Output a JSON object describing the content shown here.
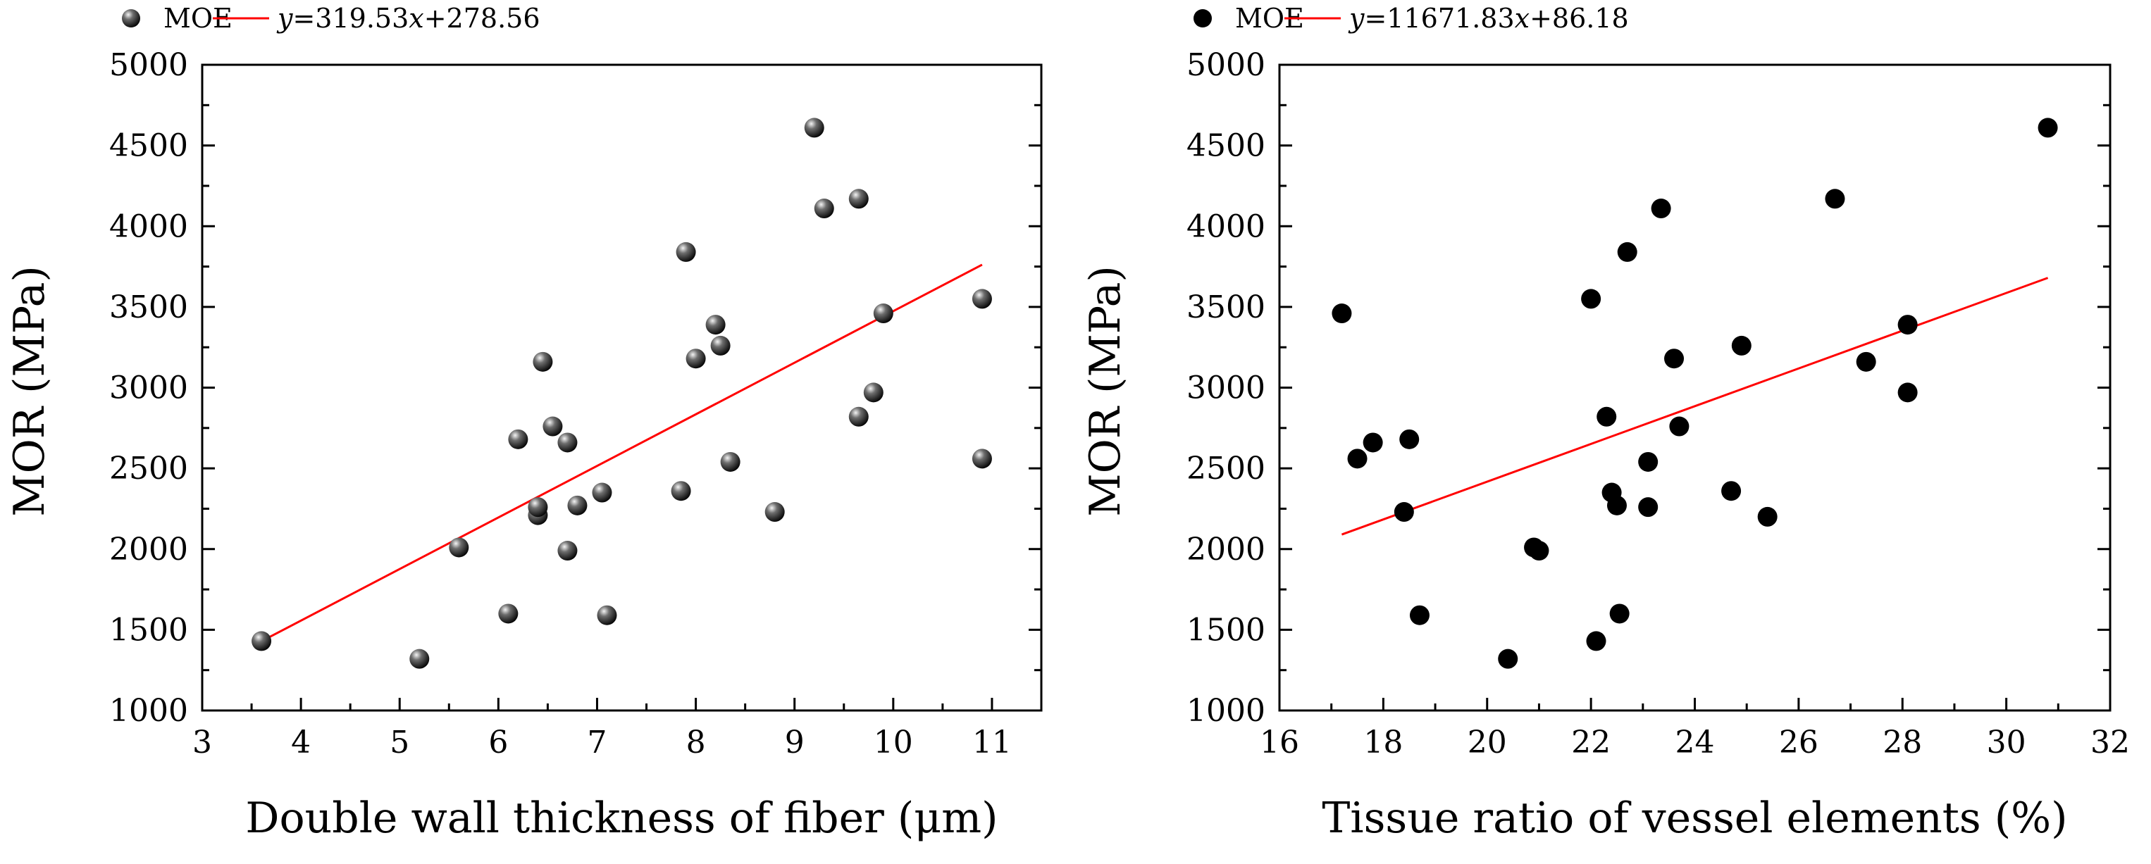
{
  "colors": {
    "marker": "#000000",
    "fit_line": "#ff0000",
    "axis": "#000000",
    "background": "#ffffff"
  },
  "chart_data": [
    {
      "type": "scatter",
      "xlabel": "Double wall thickness of fiber (μm)",
      "ylabel": "MOR (MPa)",
      "xlim": [
        3,
        11.5
      ],
      "ylim": [
        1000,
        5000
      ],
      "xticks": [
        "3",
        "4",
        "5",
        "6",
        "7",
        "8",
        "9",
        "10",
        "11"
      ],
      "yticks": [
        "1000",
        "1500",
        "2000",
        "2500",
        "3000",
        "3500",
        "4000",
        "4500",
        "5000"
      ],
      "marker_style": "shaded-sphere",
      "legend": {
        "placement": "top",
        "marker_label": "MOE",
        "fit_prefix": "y",
        "fit_rest": "=319.53",
        "fit_var": "x",
        "fit_tail": "+278.56"
      },
      "fit": {
        "slope": 319.53,
        "intercept": 278.56,
        "x_range": [
          3.6,
          10.9
        ]
      },
      "points": [
        {
          "x": 3.6,
          "y": 1430
        },
        {
          "x": 5.2,
          "y": 1320
        },
        {
          "x": 5.6,
          "y": 2010
        },
        {
          "x": 6.1,
          "y": 1600
        },
        {
          "x": 6.2,
          "y": 2680
        },
        {
          "x": 6.4,
          "y": 2210
        },
        {
          "x": 6.4,
          "y": 2260
        },
        {
          "x": 6.45,
          "y": 3160
        },
        {
          "x": 6.55,
          "y": 2760
        },
        {
          "x": 6.7,
          "y": 1990
        },
        {
          "x": 6.7,
          "y": 2660
        },
        {
          "x": 6.8,
          "y": 2270
        },
        {
          "x": 7.05,
          "y": 2350
        },
        {
          "x": 7.1,
          "y": 1590
        },
        {
          "x": 7.85,
          "y": 2360
        },
        {
          "x": 7.9,
          "y": 3840
        },
        {
          "x": 8.0,
          "y": 3180
        },
        {
          "x": 8.2,
          "y": 3390
        },
        {
          "x": 8.25,
          "y": 3260
        },
        {
          "x": 8.35,
          "y": 2540
        },
        {
          "x": 8.8,
          "y": 2230
        },
        {
          "x": 9.2,
          "y": 4610
        },
        {
          "x": 9.3,
          "y": 4110
        },
        {
          "x": 9.65,
          "y": 4170
        },
        {
          "x": 9.65,
          "y": 2820
        },
        {
          "x": 9.8,
          "y": 2970
        },
        {
          "x": 9.9,
          "y": 3460
        },
        {
          "x": 10.9,
          "y": 3550
        },
        {
          "x": 10.9,
          "y": 2560
        }
      ]
    },
    {
      "type": "scatter",
      "xlabel": "Tissue ratio of vessel elements (%)",
      "ylabel": "MOR (MPa)",
      "xlim": [
        16,
        32
      ],
      "ylim": [
        1000,
        5000
      ],
      "xticks": [
        "16",
        "18",
        "20",
        "22",
        "24",
        "26",
        "28",
        "30",
        "32"
      ],
      "yticks": [
        "1000",
        "1500",
        "2000",
        "2500",
        "3000",
        "3500",
        "4000",
        "4500",
        "5000"
      ],
      "marker_style": "solid-dot",
      "legend": {
        "placement": "top",
        "marker_label": "MOE",
        "fit_prefix": "y",
        "fit_rest": "=11671.83",
        "fit_var": "x",
        "fit_tail": "+86.18"
      },
      "fit": {
        "x_range": [
          17.2,
          30.8
        ],
        "y_range": [
          2090,
          3680
        ]
      },
      "points": [
        {
          "x": 17.2,
          "y": 3460
        },
        {
          "x": 17.5,
          "y": 2560
        },
        {
          "x": 17.8,
          "y": 2660
        },
        {
          "x": 18.4,
          "y": 2230
        },
        {
          "x": 18.5,
          "y": 2680
        },
        {
          "x": 18.7,
          "y": 1590
        },
        {
          "x": 20.4,
          "y": 1320
        },
        {
          "x": 20.9,
          "y": 2010
        },
        {
          "x": 21.0,
          "y": 1990
        },
        {
          "x": 22.0,
          "y": 3550
        },
        {
          "x": 22.1,
          "y": 1430
        },
        {
          "x": 22.3,
          "y": 2820
        },
        {
          "x": 22.4,
          "y": 2350
        },
        {
          "x": 22.5,
          "y": 2270
        },
        {
          "x": 22.55,
          "y": 1600
        },
        {
          "x": 22.7,
          "y": 3840
        },
        {
          "x": 23.1,
          "y": 2540
        },
        {
          "x": 23.1,
          "y": 2260
        },
        {
          "x": 23.35,
          "y": 4110
        },
        {
          "x": 23.6,
          "y": 3180
        },
        {
          "x": 23.7,
          "y": 2760
        },
        {
          "x": 24.7,
          "y": 2360
        },
        {
          "x": 24.9,
          "y": 3260
        },
        {
          "x": 25.4,
          "y": 2200
        },
        {
          "x": 26.7,
          "y": 4170
        },
        {
          "x": 27.3,
          "y": 3160
        },
        {
          "x": 28.1,
          "y": 3390
        },
        {
          "x": 28.1,
          "y": 2970
        },
        {
          "x": 30.8,
          "y": 4610
        }
      ]
    }
  ]
}
